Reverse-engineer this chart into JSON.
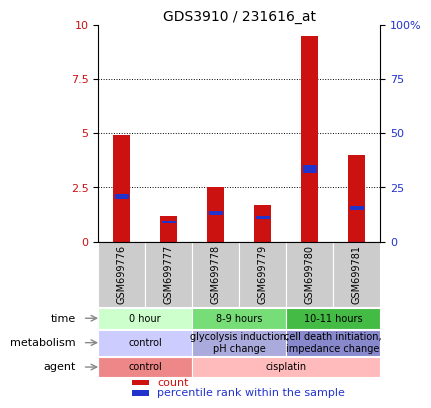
{
  "title": "GDS3910 / 231616_at",
  "samples": [
    "GSM699776",
    "GSM699777",
    "GSM699778",
    "GSM699779",
    "GSM699780",
    "GSM699781"
  ],
  "count_values": [
    4.9,
    1.2,
    2.5,
    1.7,
    9.5,
    4.0
  ],
  "percentile_values": [
    2.0,
    0.9,
    1.3,
    1.1,
    3.2,
    1.5
  ],
  "left_ylim": [
    0,
    10
  ],
  "right_ylim": [
    0,
    100
  ],
  "left_yticks": [
    0,
    2.5,
    5.0,
    7.5,
    10.0
  ],
  "left_yticklabels": [
    "0",
    "2.5",
    "5",
    "7.5",
    "10"
  ],
  "right_yticks": [
    0,
    25,
    50,
    75,
    100
  ],
  "right_yticklabels": [
    "0",
    "25",
    "50",
    "75",
    "100%"
  ],
  "bar_color_red": "#cc1111",
  "bar_color_blue": "#2233cc",
  "bar_width": 0.35,
  "dotted_lines": [
    2.5,
    5.0,
    7.5
  ],
  "time_groups": [
    {
      "label": "0 hour",
      "span": [
        0,
        1
      ],
      "color": "#ccffcc"
    },
    {
      "label": "8-9 hours",
      "span": [
        2,
        3
      ],
      "color": "#77dd77"
    },
    {
      "label": "10-11 hours",
      "span": [
        4,
        5
      ],
      "color": "#44bb44"
    }
  ],
  "metabolism_groups": [
    {
      "label": "control",
      "span": [
        0,
        1
      ],
      "color": "#ccccff"
    },
    {
      "label": "glycolysis induction,\npH change",
      "span": [
        2,
        3
      ],
      "color": "#aaaadd"
    },
    {
      "label": "cell death initiation,\nimpedance change",
      "span": [
        4,
        5
      ],
      "color": "#8888cc"
    }
  ],
  "agent_groups": [
    {
      "label": "control",
      "span": [
        0,
        1
      ],
      "color": "#ee8888"
    },
    {
      "label": "cisplatin",
      "span": [
        2,
        5
      ],
      "color": "#ffbbbb"
    }
  ],
  "row_labels": [
    "time",
    "metabolism",
    "agent"
  ],
  "sample_bg": "#cccccc",
  "legend": [
    {
      "color": "#cc1111",
      "label": "count"
    },
    {
      "color": "#2233cc",
      "label": "percentile rank within the sample"
    }
  ]
}
